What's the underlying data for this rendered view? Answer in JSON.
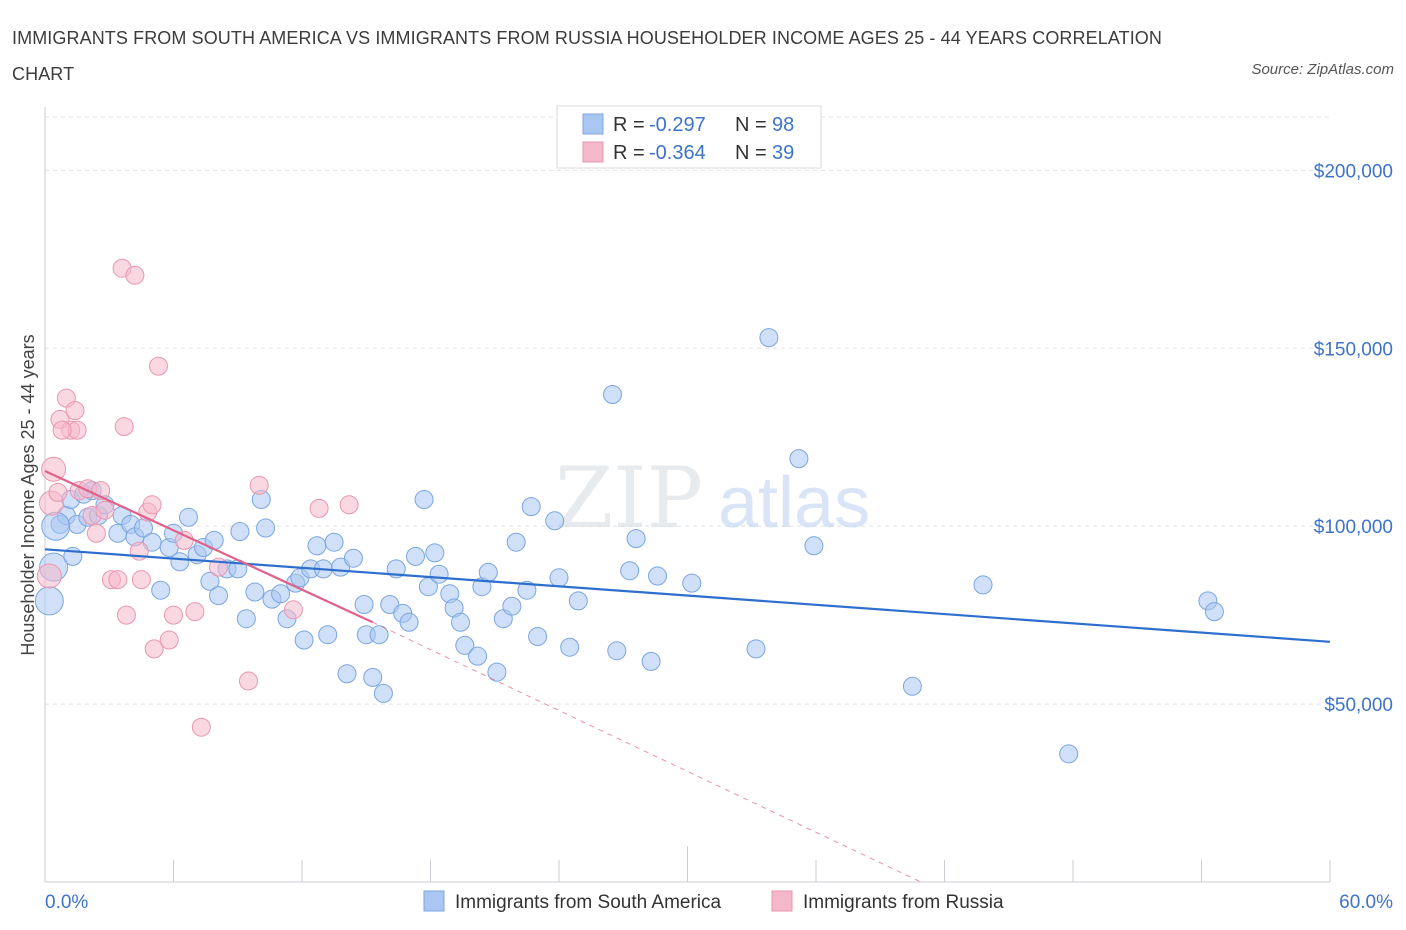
{
  "title": "IMMIGRANTS FROM SOUTH AMERICA VS IMMIGRANTS FROM RUSSIA HOUSEHOLDER INCOME AGES 25 - 44 YEARS CORRELATION CHART",
  "source": "Source: ZipAtlas.com",
  "watermark": {
    "zip": "ZIP",
    "atlas": "atlas"
  },
  "legend_top": {
    "r_label": "R =",
    "n_label": "N =",
    "rows": [
      {
        "r": "-0.297",
        "n": "98"
      },
      {
        "r": "-0.364",
        "n": "39"
      }
    ]
  },
  "colors": {
    "blue_fill": "#a9c7f2",
    "blue_stroke": "#7aa6e0",
    "blue_line": "#2e6fcd",
    "pink_fill": "#f5b8ca",
    "pink_stroke": "#e996b0",
    "pink_line": "#e0628a",
    "grid": "#dde1e6",
    "tick_text": "#3e74c8"
  },
  "chart_data": {
    "type": "scatter",
    "title": "IMMIGRANTS FROM SOUTH AMERICA VS IMMIGRANTS FROM RUSSIA HOUSEHOLDER INCOME AGES 25 - 44 YEARS CORRELATION CHART",
    "xlabel": "",
    "ylabel": "Householder Income Ages 25 - 44 years",
    "xlim": [
      0,
      60
    ],
    "ylim": [
      0,
      215000
    ],
    "x_tick_labels": [
      "0.0%",
      "60.0%"
    ],
    "y_ticks": [
      50000,
      100000,
      150000,
      200000
    ],
    "y_tick_labels": [
      "$50,000",
      "$100,000",
      "$150,000",
      "$200,000"
    ],
    "grid": true,
    "legend_position": "top-center",
    "series": [
      {
        "name": "Immigrants from South America",
        "color": "#a9c7f2",
        "r": -0.297,
        "n": 98,
        "trend": {
          "x": [
            0,
            60
          ],
          "y": [
            93500,
            67500
          ],
          "style": "solid"
        },
        "points": [
          [
            0.2,
            79000
          ],
          [
            0.4,
            88500
          ],
          [
            0.7,
            100500
          ],
          [
            1.0,
            103000
          ],
          [
            1.2,
            107500
          ],
          [
            1.5,
            100500
          ],
          [
            1.8,
            109000
          ],
          [
            2.0,
            102500
          ],
          [
            2.2,
            110000
          ],
          [
            2.5,
            103000
          ],
          [
            2.8,
            106000
          ],
          [
            3.4,
            98000
          ],
          [
            3.6,
            103000
          ],
          [
            4.0,
            100500
          ],
          [
            4.2,
            97000
          ],
          [
            4.6,
            99500
          ],
          [
            5.0,
            95500
          ],
          [
            5.4,
            82000
          ],
          [
            5.8,
            94000
          ],
          [
            6.0,
            98000
          ],
          [
            6.3,
            90000
          ],
          [
            6.7,
            102500
          ],
          [
            7.1,
            92000
          ],
          [
            7.4,
            94000
          ],
          [
            7.7,
            84500
          ],
          [
            7.9,
            96000
          ],
          [
            8.1,
            80500
          ],
          [
            8.5,
            88000
          ],
          [
            9.0,
            88000
          ],
          [
            9.1,
            98500
          ],
          [
            9.4,
            74000
          ],
          [
            9.8,
            81500
          ],
          [
            10.1,
            107500
          ],
          [
            10.3,
            99500
          ],
          [
            10.6,
            79500
          ],
          [
            11.0,
            81000
          ],
          [
            11.3,
            74000
          ],
          [
            11.7,
            84000
          ],
          [
            11.9,
            85500
          ],
          [
            12.1,
            68000
          ],
          [
            12.4,
            88000
          ],
          [
            12.7,
            94500
          ],
          [
            13.0,
            88000
          ],
          [
            13.2,
            69500
          ],
          [
            13.5,
            95500
          ],
          [
            13.8,
            88500
          ],
          [
            14.1,
            58500
          ],
          [
            14.4,
            91000
          ],
          [
            14.9,
            78000
          ],
          [
            15.0,
            69500
          ],
          [
            15.3,
            57500
          ],
          [
            15.6,
            69500
          ],
          [
            15.8,
            53000
          ],
          [
            16.1,
            78000
          ],
          [
            16.4,
            88000
          ],
          [
            16.7,
            75500
          ],
          [
            17.0,
            73000
          ],
          [
            17.3,
            91500
          ],
          [
            17.7,
            107500
          ],
          [
            17.9,
            83000
          ],
          [
            18.2,
            92500
          ],
          [
            18.4,
            86500
          ],
          [
            18.9,
            81000
          ],
          [
            19.1,
            77000
          ],
          [
            19.4,
            73000
          ],
          [
            19.6,
            66500
          ],
          [
            20.2,
            63500
          ],
          [
            20.4,
            83000
          ],
          [
            20.7,
            87000
          ],
          [
            21.1,
            59000
          ],
          [
            21.4,
            74000
          ],
          [
            21.8,
            77500
          ],
          [
            22.0,
            95500
          ],
          [
            22.5,
            82000
          ],
          [
            22.7,
            105500
          ],
          [
            23.0,
            69000
          ],
          [
            23.8,
            101500
          ],
          [
            24.0,
            85500
          ],
          [
            24.5,
            66000
          ],
          [
            24.9,
            79000
          ],
          [
            26.5,
            137000
          ],
          [
            26.7,
            65000
          ],
          [
            27.3,
            87500
          ],
          [
            27.6,
            96500
          ],
          [
            28.3,
            62000
          ],
          [
            28.6,
            86000
          ],
          [
            30.2,
            84000
          ],
          [
            33.2,
            65500
          ],
          [
            33.8,
            153000
          ],
          [
            35.2,
            119000
          ],
          [
            35.9,
            94500
          ],
          [
            40.5,
            55000
          ],
          [
            43.8,
            83500
          ],
          [
            47.8,
            36000
          ],
          [
            54.3,
            79000
          ],
          [
            54.6,
            76000
          ],
          [
            0.5,
            100000
          ],
          [
            1.3,
            91500
          ]
        ]
      },
      {
        "name": "Immigrants from Russia",
        "color": "#f5b8ca",
        "r": -0.364,
        "n": 39,
        "trend": {
          "x": [
            0,
            15.3
          ],
          "y": [
            115500,
            73000
          ],
          "style": "solid",
          "dashed_to": [
            40.9,
            0
          ]
        },
        "points": [
          [
            0.2,
            86000
          ],
          [
            0.3,
            106500
          ],
          [
            0.4,
            116000
          ],
          [
            0.6,
            109500
          ],
          [
            0.7,
            130000
          ],
          [
            1.0,
            136000
          ],
          [
            1.2,
            127000
          ],
          [
            1.4,
            132500
          ],
          [
            1.5,
            127000
          ],
          [
            1.6,
            110000
          ],
          [
            2.0,
            110500
          ],
          [
            2.2,
            103000
          ],
          [
            2.4,
            98000
          ],
          [
            2.6,
            110000
          ],
          [
            2.8,
            104500
          ],
          [
            3.1,
            85000
          ],
          [
            3.4,
            85000
          ],
          [
            3.6,
            172500
          ],
          [
            3.7,
            128000
          ],
          [
            3.8,
            75000
          ],
          [
            4.2,
            170500
          ],
          [
            4.4,
            93000
          ],
          [
            4.5,
            85000
          ],
          [
            4.8,
            104000
          ],
          [
            5.0,
            106000
          ],
          [
            5.1,
            65500
          ],
          [
            5.3,
            145000
          ],
          [
            5.8,
            68000
          ],
          [
            6.0,
            75000
          ],
          [
            6.5,
            96000
          ],
          [
            7.0,
            76000
          ],
          [
            7.3,
            43500
          ],
          [
            8.1,
            88500
          ],
          [
            9.5,
            56500
          ],
          [
            10.0,
            111500
          ],
          [
            11.6,
            76500
          ],
          [
            12.8,
            105000
          ],
          [
            14.2,
            106000
          ],
          [
            0.8,
            127000
          ]
        ]
      }
    ]
  },
  "bottom_legend": [
    {
      "label": "Immigrants from South America"
    },
    {
      "label": "Immigrants from Russia"
    }
  ]
}
